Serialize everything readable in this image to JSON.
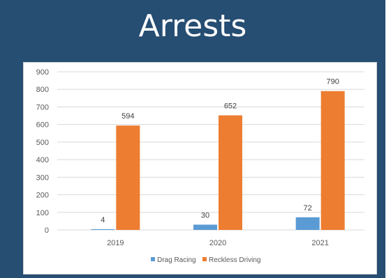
{
  "slide": {
    "title": "Arrests"
  },
  "chart_data": {
    "type": "bar",
    "categories": [
      "2019",
      "2020",
      "2021"
    ],
    "series": [
      {
        "name": "Drag Racing",
        "values": [
          4,
          30,
          72
        ],
        "color": "#5b9bd5"
      },
      {
        "name": "Reckless Driving",
        "values": [
          594,
          652,
          790
        ],
        "color": "#ed7d31"
      }
    ],
    "ylim": [
      0,
      900
    ],
    "yticks": [
      0,
      100,
      200,
      300,
      400,
      500,
      600,
      700,
      800,
      900
    ],
    "grid": true,
    "legend": "bottom",
    "gridColor": "#d9d9d9"
  }
}
